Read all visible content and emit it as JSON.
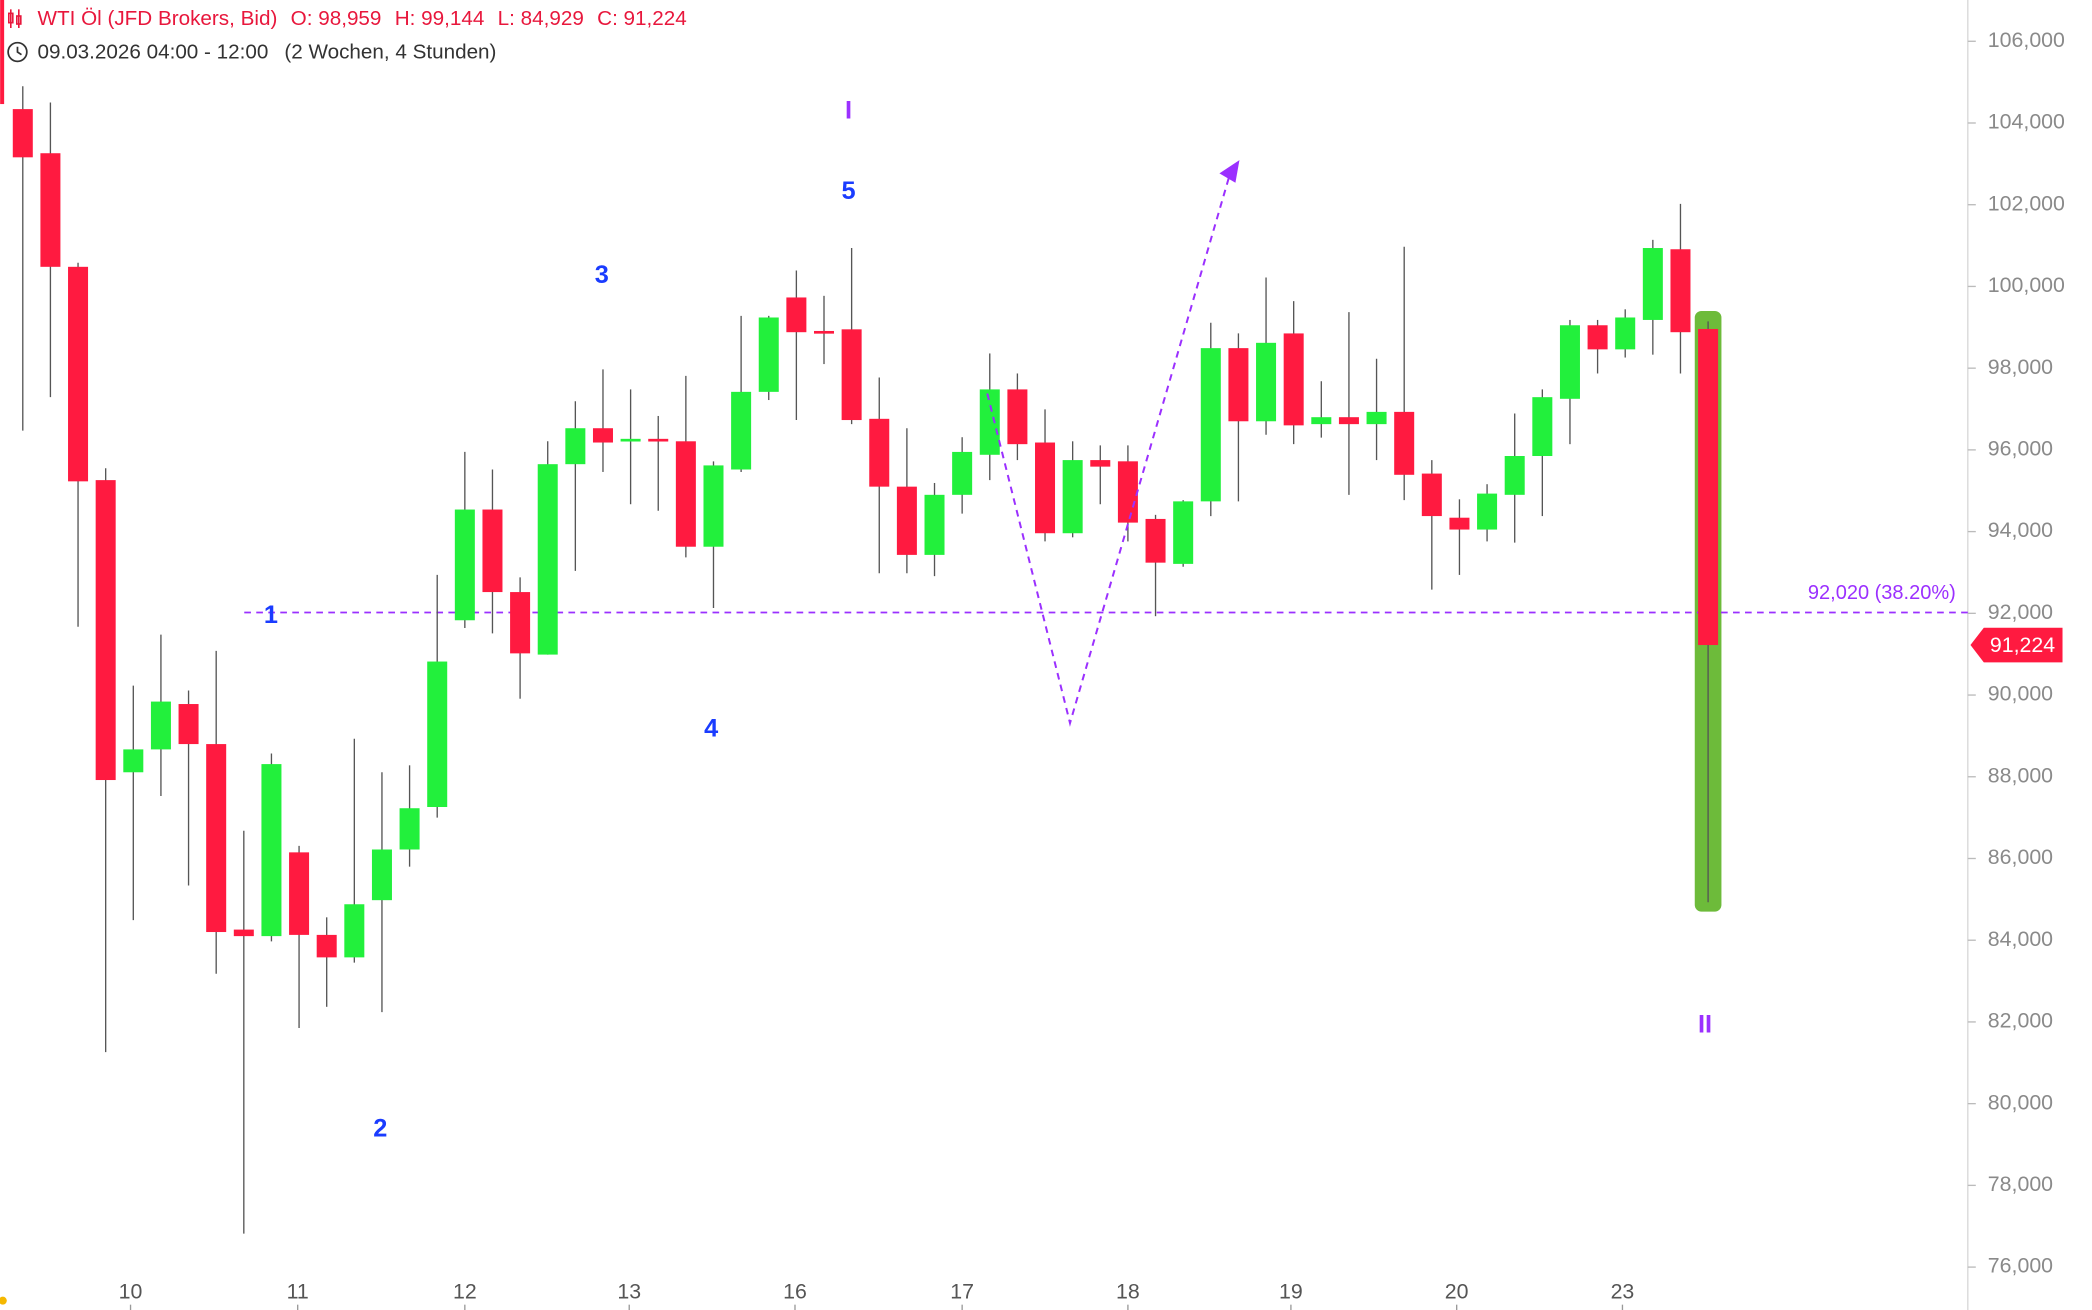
{
  "chart_data": {
    "type": "candlestick",
    "header": {
      "title": "WTI Öl (JFD Brokers, Bid)",
      "ohlc": [
        "O: 98,959",
        "H: 99,144",
        "L: 84,929",
        "C: 91,224"
      ],
      "range": "09.03.2026 04:00 - 12:00",
      "period": "(2 Wochen, 4 Stunden)"
    },
    "open": [
      104340,
      103260,
      100480,
      95260,
      88110,
      88670,
      89780,
      88800,
      84260,
      84100,
      86150,
      84130,
      83580,
      84980,
      86220,
      87260,
      91830,
      94540,
      92520,
      90990,
      95650,
      96530,
      96210,
      96270,
      96210,
      93630,
      95520,
      97420,
      99730,
      98910,
      98950,
      96760,
      95100,
      93430,
      94900,
      95880,
      97480,
      96180,
      93960,
      95750,
      95720,
      94310,
      93210,
      94740,
      98490,
      96700,
      98850,
      96630,
      96800,
      96630,
      96930,
      95420,
      94340,
      94050,
      94900,
      95850,
      97250,
      99050,
      98460,
      99180,
      100910,
      98959
    ],
    "high": [
      104900,
      104500,
      100580,
      95550,
      90230,
      91480,
      90110,
      91080,
      86680,
      88570,
      86310,
      84560,
      88930,
      88110,
      88280,
      92940,
      95950,
      95520,
      92880,
      96210,
      97190,
      97970,
      97480,
      96830,
      97810,
      95720,
      99280,
      99280,
      100390,
      99770,
      100940,
      97770,
      96530,
      95190,
      96310,
      98360,
      97870,
      96990,
      96210,
      96110,
      96110,
      94410,
      94770,
      99110,
      98850,
      100220,
      99640,
      97680,
      99370,
      98230,
      100970,
      95750,
      94790,
      95160,
      96890,
      97480,
      99180,
      99180,
      99440,
      101140,
      102020,
      99144
    ],
    "low": [
      96470,
      97290,
      91670,
      81260,
      84490,
      87530,
      85340,
      83180,
      76820,
      83970,
      81850,
      82370,
      83450,
      82240,
      85800,
      87000,
      91640,
      91510,
      89910,
      90990,
      93040,
      95460,
      94670,
      94510,
      93370,
      92130,
      95460,
      97220,
      96730,
      98100,
      96630,
      92980,
      92980,
      92910,
      94440,
      95260,
      95750,
      93760,
      93860,
      94670,
      93760,
      91930,
      93140,
      94380,
      94740,
      96370,
      96140,
      96300,
      94900,
      95750,
      94770,
      92580,
      92940,
      93760,
      93730,
      94380,
      96140,
      97870,
      98260,
      98330,
      97870,
      84929
    ],
    "close": [
      103160,
      100480,
      95230,
      87920,
      88670,
      89840,
      88800,
      84200,
      84100,
      88310,
      84130,
      83580,
      84880,
      86220,
      87230,
      90820,
      94540,
      92520,
      91020,
      95650,
      96530,
      96180,
      96270,
      96210,
      93630,
      95620,
      97420,
      99240,
      98880,
      98850,
      96730,
      95100,
      93430,
      94900,
      95950,
      97480,
      96140,
      93960,
      95750,
      95590,
      94220,
      93240,
      94740,
      98490,
      96700,
      98620,
      96600,
      96800,
      96630,
      96930,
      95390,
      94380,
      94050,
      94930,
      95850,
      97290,
      99050,
      98460,
      99240,
      100940,
      98880,
      91224
    ],
    "up_color": "#22f03c",
    "down_color": "#ff1a40",
    "xlim": [
      -0.82,
      70.4
    ],
    "xticks": [
      {
        "value": 3.9,
        "label": "10"
      },
      {
        "value": 9.95,
        "label": "11"
      },
      {
        "value": 16,
        "label": "12"
      },
      {
        "value": 21.95,
        "label": "13"
      },
      {
        "value": 27.95,
        "label": "16"
      },
      {
        "value": 34,
        "label": "17"
      },
      {
        "value": 40,
        "label": "18"
      },
      {
        "value": 45.9,
        "label": "19"
      },
      {
        "value": 51.9,
        "label": "20"
      },
      {
        "value": 57.9,
        "label": "23"
      }
    ],
    "ylim": [
      74950,
      107010
    ],
    "yticks": [
      {
        "value": 76000,
        "label": "76,000"
      },
      {
        "value": 78000,
        "label": "78,000"
      },
      {
        "value": 80000,
        "label": "80,000"
      },
      {
        "value": 82000,
        "label": "82,000"
      },
      {
        "value": 84000,
        "label": "84,000"
      },
      {
        "value": 86000,
        "label": "86,000"
      },
      {
        "value": 88000,
        "label": "88,000"
      },
      {
        "value": 90000,
        "label": "90,000"
      },
      {
        "value": 92000,
        "label": "92,000"
      },
      {
        "value": 94000,
        "label": "94,000"
      },
      {
        "value": 96000,
        "label": "96,000"
      },
      {
        "value": 98000,
        "label": "98,000"
      },
      {
        "value": 100000,
        "label": "100,000"
      },
      {
        "value": 102000,
        "label": "102,000"
      },
      {
        "value": 104000,
        "label": "104,000"
      },
      {
        "value": 106000,
        "label": "106,000"
      }
    ],
    "retracement": {
      "value": 92020,
      "label": "92,020 (38.20%)",
      "color": "#9b30ff"
    },
    "last_price": {
      "value": 91224,
      "label": "91,224",
      "color": "#ff1a40"
    },
    "highlight": {
      "high": 99400,
      "low": 84700,
      "color": "#6dbb3a"
    },
    "wave_labels": [
      {
        "text": "1",
        "color": "#1a3cff"
      },
      {
        "text": "2",
        "color": "#1a3cff"
      },
      {
        "text": "3",
        "color": "#1a3cff"
      },
      {
        "text": "4",
        "color": "#1a3cff"
      },
      {
        "text": "5",
        "color": "#1a3cff"
      },
      {
        "text": "I",
        "color": "#9b30ff"
      },
      {
        "text": "II",
        "color": "#9b30ff"
      }
    ]
  }
}
